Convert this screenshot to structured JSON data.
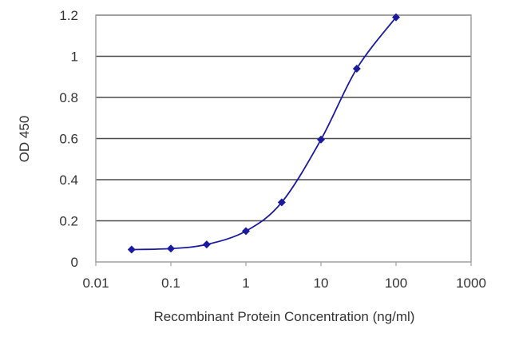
{
  "chart_data": {
    "type": "scatter",
    "title": "",
    "xlabel": "Recombinant Protein Concentration (ng/ml)",
    "ylabel": "OD 450",
    "x_scale": "log",
    "xlim": [
      0.01,
      1000
    ],
    "ylim": [
      0,
      1.2
    ],
    "x_ticks": [
      0.01,
      0.1,
      1,
      10,
      100,
      1000
    ],
    "x_tick_labels": [
      "0.01",
      "0.1",
      "1",
      "10",
      "100",
      "1000"
    ],
    "y_ticks": [
      0,
      0.2,
      0.4,
      0.6,
      0.8,
      1,
      1.2
    ],
    "y_tick_labels": [
      "0",
      "0.2",
      "0.4",
      "0.6",
      "0.8",
      "1",
      "1.2"
    ],
    "grid": "horizontal",
    "legend": "none",
    "series": [
      {
        "x": [
          0.03,
          0.1,
          0.3,
          1,
          3,
          10,
          30,
          100
        ],
        "y": [
          0.06,
          0.065,
          0.085,
          0.15,
          0.29,
          0.595,
          0.94,
          1.19
        ],
        "color": "#1a1aa0",
        "line": "smooth"
      }
    ],
    "colors": {
      "plot_border": "#a0a0a0",
      "grid": "#4a4a4a",
      "series": "#1a1aa0"
    }
  }
}
